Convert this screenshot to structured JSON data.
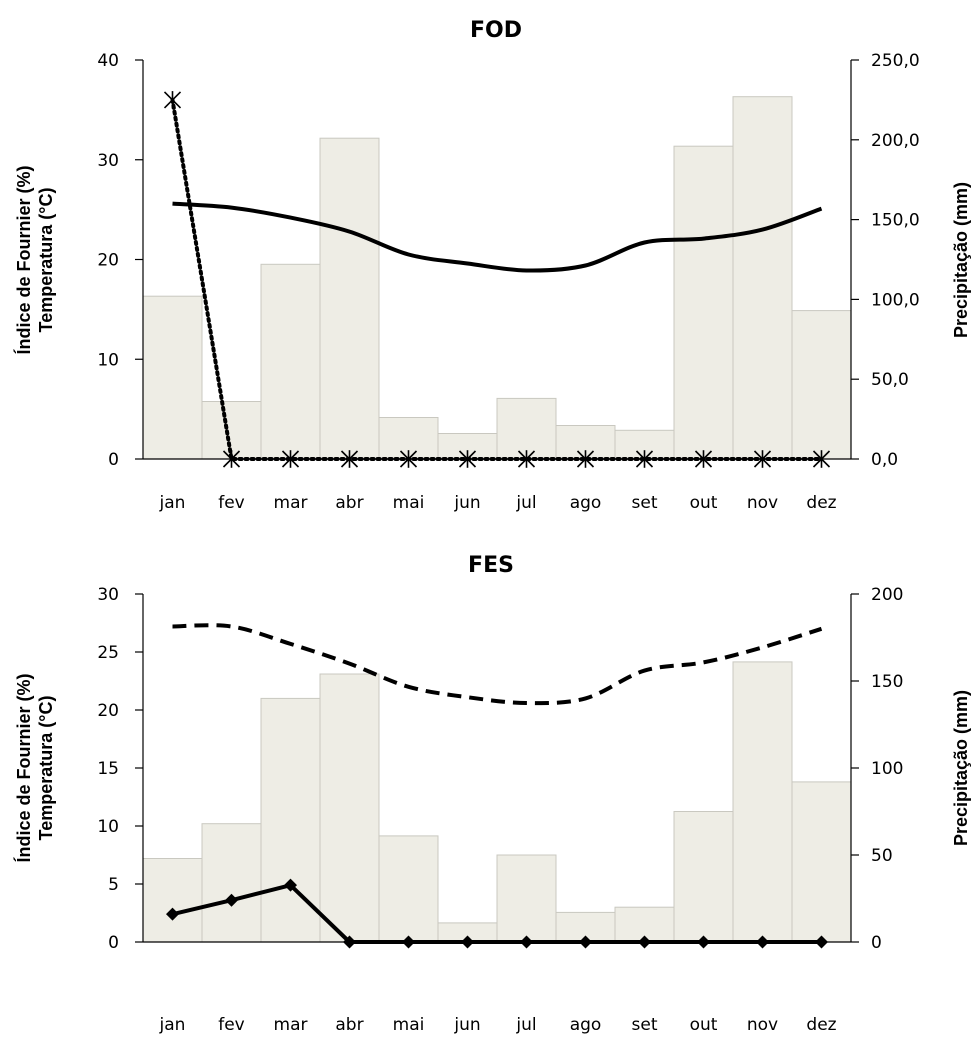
{
  "chart_data": [
    {
      "type": "bar+line",
      "title": "FOD",
      "ylabel_left": [
        "Índice de Fournier (%)",
        "Temperatura (°C)"
      ],
      "ylabel_right": "Precipitação (mm)",
      "categories": [
        "jan",
        "fev",
        "mar",
        "abr",
        "mai",
        "jun",
        "jul",
        "ago",
        "set",
        "out",
        "nov",
        "dez"
      ],
      "y_left": {
        "min": 0,
        "max": 40,
        "ticks": [
          "0",
          "10",
          "20",
          "30",
          "40"
        ]
      },
      "y_right": {
        "min": 0,
        "max": 250,
        "ticks": [
          "0,0",
          "50,0",
          "100,0",
          "150,0",
          "200,0",
          "250,0"
        ]
      },
      "series": [
        {
          "kind": "bar",
          "axis": "right",
          "color": "#eeede5",
          "values": [
            102,
            36,
            122,
            201,
            26,
            16,
            38,
            21,
            18,
            196,
            227,
            93
          ]
        },
        {
          "kind": "line",
          "axis": "left",
          "style": "solid",
          "marker": "none",
          "values": [
            25.6,
            25.2,
            24.2,
            22.8,
            20.5,
            19.6,
            18.9,
            19.4,
            21.7,
            22.1,
            23.0,
            25.1
          ]
        },
        {
          "kind": "line",
          "axis": "left",
          "style": "dotted",
          "marker": "star",
          "values": [
            36,
            0,
            0,
            0,
            0,
            0,
            0,
            0,
            0,
            0,
            0,
            0
          ]
        }
      ]
    },
    {
      "type": "bar+line",
      "title": "FES",
      "ylabel_left": [
        "Índice de Fournier (%)",
        "Temperatura (°C)"
      ],
      "ylabel_right": "Precipitação (mm)",
      "categories": [
        "jan",
        "fev",
        "mar",
        "abr",
        "mai",
        "jun",
        "jul",
        "ago",
        "set",
        "out",
        "nov",
        "dez"
      ],
      "y_left": {
        "min": 0,
        "max": 30,
        "ticks": [
          "0",
          "5",
          "10",
          "15",
          "20",
          "25",
          "30"
        ]
      },
      "y_right": {
        "min": 0,
        "max": 200,
        "ticks": [
          "0",
          "50",
          "100",
          "150",
          "200"
        ]
      },
      "series": [
        {
          "kind": "bar",
          "axis": "right",
          "color": "#eeede5",
          "values": [
            48,
            68,
            140,
            154,
            61,
            11,
            50,
            17,
            20,
            75,
            161,
            92
          ]
        },
        {
          "kind": "line",
          "axis": "left",
          "style": "dashed",
          "marker": "none",
          "values": [
            27.2,
            27.2,
            25.7,
            24.0,
            22.0,
            21.1,
            20.6,
            21.0,
            23.4,
            24.1,
            25.4,
            27.0
          ]
        },
        {
          "kind": "line",
          "axis": "left",
          "style": "solid",
          "marker": "diamond",
          "values": [
            2.4,
            3.6,
            4.9,
            0,
            0,
            0,
            0,
            0,
            0,
            0,
            0,
            0
          ]
        }
      ]
    }
  ]
}
